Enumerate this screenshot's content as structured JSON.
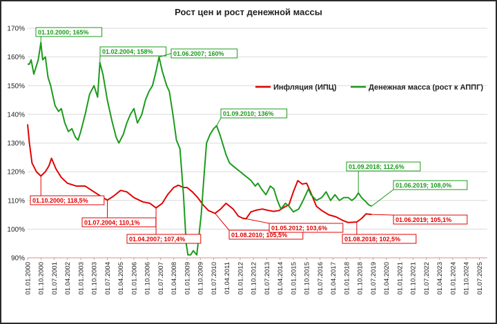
{
  "chart_data": {
    "type": "line",
    "title": "Рост цен и рост денежной массы",
    "ylim": [
      90,
      170
    ],
    "y_ticks": [
      "90%",
      "100%",
      "110%",
      "120%",
      "130%",
      "140%",
      "150%",
      "160%",
      "170%"
    ],
    "x_tick_labels": [
      "01.01.2000",
      "01.10.2000",
      "01.07.2001",
      "01.04.2002",
      "01.01.2003",
      "01.10.2003",
      "01.07.2004",
      "01.04.2005",
      "01.01.2006",
      "01.10.2006",
      "01.07.2007",
      "01.04.2008",
      "01.01.2009",
      "01.10.2009",
      "01.07.2010",
      "01.04.2011",
      "01.01.2012",
      "01.10.2012",
      "01.07.2013",
      "01.04.2014",
      "01.01.2015",
      "01.10.2015",
      "01.07.2016",
      "01.04.2017",
      "01.01.2018",
      "01.10.2018",
      "01.07.2019",
      "01.04.2020",
      "01.01.2021",
      "01.10.2021",
      "01.07.2022",
      "01.04.2023",
      "01.01.2024",
      "01.10.2024",
      "01.07.2025"
    ],
    "legend_position": "right",
    "series": [
      {
        "name": "Инфляция (ИПЦ)",
        "color": "#e00000",
        "points": [
          [
            2000.0,
            136.5
          ],
          [
            2000.1,
            130
          ],
          [
            2000.25,
            123
          ],
          [
            2000.5,
            120
          ],
          [
            2000.75,
            118.5
          ],
          [
            2001.0,
            120
          ],
          [
            2001.2,
            122
          ],
          [
            2001.35,
            124.7
          ],
          [
            2001.6,
            121
          ],
          [
            2001.9,
            118
          ],
          [
            2002.25,
            116
          ],
          [
            2002.75,
            115
          ],
          [
            2003.25,
            115
          ],
          [
            2003.75,
            113
          ],
          [
            2004.25,
            111
          ],
          [
            2004.5,
            110.1
          ],
          [
            2004.85,
            111.5
          ],
          [
            2005.25,
            113.5
          ],
          [
            2005.6,
            113
          ],
          [
            2006.0,
            111
          ],
          [
            2006.5,
            109.5
          ],
          [
            2006.9,
            109
          ],
          [
            2007.25,
            107.4
          ],
          [
            2007.6,
            109
          ],
          [
            2007.9,
            112
          ],
          [
            2008.25,
            114.5
          ],
          [
            2008.5,
            115.3
          ],
          [
            2008.8,
            114.5
          ],
          [
            2009.0,
            114.5
          ],
          [
            2009.3,
            113
          ],
          [
            2009.6,
            111
          ],
          [
            2009.9,
            108.5
          ],
          [
            2010.2,
            106.5
          ],
          [
            2010.58,
            105.5
          ],
          [
            2010.9,
            107
          ],
          [
            2011.2,
            109
          ],
          [
            2011.6,
            107
          ],
          [
            2011.9,
            104.5
          ],
          [
            2012.15,
            103.8
          ],
          [
            2012.33,
            103.6
          ],
          [
            2012.6,
            106
          ],
          [
            2012.9,
            106.6
          ],
          [
            2013.25,
            107
          ],
          [
            2013.6,
            106.5
          ],
          [
            2013.9,
            106.2
          ],
          [
            2014.2,
            106.5
          ],
          [
            2014.5,
            107.7
          ],
          [
            2014.75,
            108.5
          ],
          [
            2015.0,
            113
          ],
          [
            2015.25,
            116.9
          ],
          [
            2015.5,
            115.7
          ],
          [
            2015.75,
            116
          ],
          [
            2016.0,
            112.5
          ],
          [
            2016.3,
            108
          ],
          [
            2016.6,
            106.5
          ],
          [
            2017.0,
            105
          ],
          [
            2017.4,
            104.3
          ],
          [
            2017.8,
            103
          ],
          [
            2018.1,
            102.3
          ],
          [
            2018.58,
            102.5
          ],
          [
            2018.85,
            103.7
          ],
          [
            2019.1,
            105.3
          ],
          [
            2019.42,
            105.1
          ]
        ]
      },
      {
        "name": "Денежная масса (рост к АППГ)",
        "color": "#1a9a1a",
        "points": [
          [
            2000.0,
            157.5
          ],
          [
            2000.1,
            157.5
          ],
          [
            2000.2,
            159
          ],
          [
            2000.35,
            154
          ],
          [
            2000.5,
            157
          ],
          [
            2000.6,
            159
          ],
          [
            2000.75,
            165
          ],
          [
            2000.85,
            159
          ],
          [
            2001.0,
            160
          ],
          [
            2001.15,
            153
          ],
          [
            2001.3,
            150
          ],
          [
            2001.55,
            143
          ],
          [
            2001.75,
            141
          ],
          [
            2001.9,
            142
          ],
          [
            2002.1,
            137
          ],
          [
            2002.3,
            134
          ],
          [
            2002.5,
            135
          ],
          [
            2002.7,
            132
          ],
          [
            2002.85,
            131
          ],
          [
            2003.0,
            134
          ],
          [
            2003.25,
            140
          ],
          [
            2003.5,
            147
          ],
          [
            2003.75,
            150
          ],
          [
            2003.95,
            146
          ],
          [
            2004.08,
            158
          ],
          [
            2004.25,
            154
          ],
          [
            2004.5,
            145
          ],
          [
            2004.75,
            138
          ],
          [
            2005.0,
            132
          ],
          [
            2005.15,
            130
          ],
          [
            2005.4,
            133
          ],
          [
            2005.6,
            137
          ],
          [
            2005.8,
            140
          ],
          [
            2006.0,
            142
          ],
          [
            2006.2,
            137
          ],
          [
            2006.45,
            140
          ],
          [
            2006.65,
            145
          ],
          [
            2006.85,
            148
          ],
          [
            2007.05,
            150
          ],
          [
            2007.25,
            155
          ],
          [
            2007.42,
            160
          ],
          [
            2007.6,
            155
          ],
          [
            2007.85,
            150
          ],
          [
            2008.0,
            148
          ],
          [
            2008.2,
            140
          ],
          [
            2008.4,
            131
          ],
          [
            2008.6,
            128
          ],
          [
            2008.8,
            112
          ],
          [
            2008.95,
            95
          ],
          [
            2009.05,
            91
          ],
          [
            2009.2,
            91
          ],
          [
            2009.35,
            92.5
          ],
          [
            2009.55,
            91
          ],
          [
            2009.8,
            105
          ],
          [
            2009.95,
            118
          ],
          [
            2010.1,
            130
          ],
          [
            2010.3,
            133
          ],
          [
            2010.5,
            135
          ],
          [
            2010.67,
            136
          ],
          [
            2010.85,
            133
          ],
          [
            2011.0,
            130
          ],
          [
            2011.2,
            126
          ],
          [
            2011.4,
            123
          ],
          [
            2011.6,
            122
          ],
          [
            2011.8,
            121
          ],
          [
            2012.0,
            120
          ],
          [
            2012.2,
            119
          ],
          [
            2012.4,
            118
          ],
          [
            2012.6,
            117
          ],
          [
            2012.85,
            115
          ],
          [
            2013.0,
            116
          ],
          [
            2013.2,
            114
          ],
          [
            2013.45,
            112
          ],
          [
            2013.7,
            115
          ],
          [
            2013.9,
            114
          ],
          [
            2014.1,
            110
          ],
          [
            2014.3,
            107
          ],
          [
            2014.55,
            109
          ],
          [
            2014.75,
            108
          ],
          [
            2015.0,
            106
          ],
          [
            2015.3,
            107
          ],
          [
            2015.55,
            110
          ],
          [
            2015.85,
            114
          ],
          [
            2016.0,
            112
          ],
          [
            2016.3,
            110
          ],
          [
            2016.6,
            111
          ],
          [
            2016.85,
            113
          ],
          [
            2017.1,
            110
          ],
          [
            2017.35,
            112
          ],
          [
            2017.6,
            110
          ],
          [
            2017.85,
            111
          ],
          [
            2018.1,
            111
          ],
          [
            2018.3,
            110
          ],
          [
            2018.5,
            111
          ],
          [
            2018.67,
            112.6
          ],
          [
            2018.85,
            111
          ],
          [
            2019.1,
            109.5
          ],
          [
            2019.25,
            108.5
          ],
          [
            2019.42,
            108
          ]
        ]
      }
    ],
    "annotations": [
      {
        "text": "01.10.2000; 165%",
        "series": 1,
        "x": 2000.75,
        "y": 165
      },
      {
        "text": "01.02.2004; 158%",
        "series": 1,
        "x": 2004.08,
        "y": 158
      },
      {
        "text": "01.06.2007; 160%",
        "series": 1,
        "x": 2007.42,
        "y": 160
      },
      {
        "text": "01.09.2010; 136%",
        "series": 1,
        "x": 2010.67,
        "y": 136
      },
      {
        "text": "01.09.2018; 112,6%",
        "series": 1,
        "x": 2018.67,
        "y": 112.6
      },
      {
        "text": "01.06.2019; 108,0%",
        "series": 1,
        "x": 2019.42,
        "y": 108
      },
      {
        "text": "01.10.2000; 118,5%",
        "series": 0,
        "x": 2000.75,
        "y": 118.5
      },
      {
        "text": "01.07.2004; 110,1%",
        "series": 0,
        "x": 2004.5,
        "y": 110.1
      },
      {
        "text": "01.04.2007; 107,4%",
        "series": 0,
        "x": 2007.25,
        "y": 107.4
      },
      {
        "text": "01.08.2010; 105,5%",
        "series": 0,
        "x": 2010.58,
        "y": 105.5
      },
      {
        "text": "01.05.2012; 103,6%",
        "series": 0,
        "x": 2012.33,
        "y": 103.6
      },
      {
        "text": "01.08.2018; 102,5%",
        "series": 0,
        "x": 2018.58,
        "y": 102.5
      },
      {
        "text": "01.06.2019; 105,1%",
        "series": 0,
        "x": 2019.42,
        "y": 105.1
      }
    ]
  }
}
